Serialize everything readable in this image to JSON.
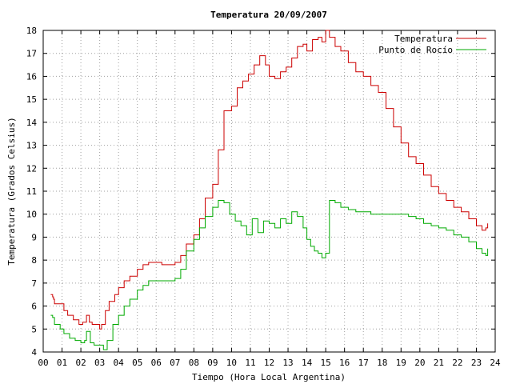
{
  "chart_data": {
    "type": "line",
    "title": "Temperatura 20/09/2007",
    "xlabel": "Tiempo (Hora Local Argentina)",
    "ylabel": "Temperatura (Grados Celsius)",
    "xlim": [
      0,
      24
    ],
    "ylim": [
      4,
      18
    ],
    "x_ticks": [
      "00",
      "01",
      "02",
      "03",
      "04",
      "05",
      "06",
      "07",
      "08",
      "09",
      "10",
      "11",
      "12",
      "13",
      "14",
      "15",
      "16",
      "17",
      "18",
      "19",
      "20",
      "21",
      "22",
      "23",
      "24"
    ],
    "y_ticks": [
      "4",
      "5",
      "6",
      "7",
      "8",
      "9",
      "10",
      "11",
      "12",
      "13",
      "14",
      "15",
      "16",
      "17",
      "18"
    ],
    "grid": true,
    "legend_position": "top-right",
    "series": [
      {
        "name": "Temperatura",
        "color": "#cc0000",
        "x": [
          0.4,
          0.5,
          0.55,
          0.6,
          0.9,
          1.1,
          1.3,
          1.6,
          1.9,
          2.1,
          2.3,
          2.45,
          2.6,
          3.0,
          3.1,
          3.3,
          3.5,
          3.8,
          4.0,
          4.3,
          4.6,
          5.0,
          5.3,
          5.6,
          6.0,
          6.3,
          6.6,
          7.0,
          7.3,
          7.6,
          8.0,
          8.3,
          8.6,
          9.0,
          9.3,
          9.6,
          10.0,
          10.3,
          10.6,
          10.9,
          11.2,
          11.5,
          11.8,
          12.0,
          12.3,
          12.6,
          12.9,
          13.2,
          13.5,
          13.8,
          14.0,
          14.3,
          14.6,
          14.8,
          15.0,
          15.2,
          15.5,
          15.8,
          16.2,
          16.6,
          17.0,
          17.4,
          17.8,
          18.2,
          18.6,
          19.0,
          19.4,
          19.8,
          20.2,
          20.6,
          21.0,
          21.4,
          21.8,
          22.2,
          22.6,
          23.0,
          23.3,
          23.5,
          23.6
        ],
        "y": [
          6.5,
          6.4,
          6.3,
          6.1,
          6.1,
          5.8,
          5.6,
          5.4,
          5.2,
          5.3,
          5.6,
          5.3,
          5.2,
          5.0,
          5.2,
          5.8,
          6.2,
          6.5,
          6.8,
          7.1,
          7.3,
          7.6,
          7.8,
          7.9,
          7.9,
          7.8,
          7.8,
          7.9,
          8.2,
          8.7,
          9.1,
          9.8,
          10.7,
          11.3,
          12.8,
          14.5,
          14.7,
          15.5,
          15.8,
          16.1,
          16.5,
          16.9,
          16.5,
          16.0,
          15.9,
          16.2,
          16.4,
          16.8,
          17.3,
          17.4,
          17.1,
          17.6,
          17.7,
          17.5,
          18.0,
          17.7,
          17.3,
          17.1,
          16.6,
          16.2,
          16.0,
          15.6,
          15.3,
          14.6,
          13.8,
          13.1,
          12.5,
          12.2,
          11.7,
          11.2,
          10.9,
          10.6,
          10.3,
          10.1,
          9.8,
          9.5,
          9.3,
          9.4,
          9.6
        ]
      },
      {
        "name": "Punto de Rocío",
        "color": "#00aa00",
        "x": [
          0.4,
          0.5,
          0.6,
          0.9,
          1.1,
          1.4,
          1.7,
          2.0,
          2.2,
          2.3,
          2.5,
          2.7,
          3.0,
          3.2,
          3.4,
          3.7,
          4.0,
          4.3,
          4.6,
          5.0,
          5.3,
          5.6,
          6.0,
          6.3,
          6.6,
          7.0,
          7.3,
          7.6,
          8.0,
          8.3,
          8.6,
          9.0,
          9.3,
          9.6,
          9.9,
          10.2,
          10.5,
          10.8,
          11.1,
          11.4,
          11.7,
          12.0,
          12.3,
          12.6,
          12.9,
          13.2,
          13.5,
          13.8,
          14.0,
          14.2,
          14.4,
          14.6,
          14.8,
          15.0,
          15.2,
          15.5,
          15.8,
          16.2,
          16.6,
          17.0,
          17.4,
          17.8,
          18.2,
          18.6,
          19.0,
          19.4,
          19.8,
          20.2,
          20.6,
          21.0,
          21.4,
          21.8,
          22.2,
          22.6,
          23.0,
          23.3,
          23.5,
          23.6
        ],
        "y": [
          5.6,
          5.5,
          5.2,
          5.0,
          4.8,
          4.6,
          4.5,
          4.4,
          4.5,
          4.9,
          4.4,
          4.3,
          4.3,
          4.1,
          4.5,
          5.2,
          5.6,
          6.0,
          6.3,
          6.7,
          6.9,
          7.1,
          7.1,
          7.1,
          7.1,
          7.2,
          7.6,
          8.4,
          8.9,
          9.4,
          9.9,
          10.3,
          10.6,
          10.5,
          10.0,
          9.7,
          9.5,
          9.1,
          9.8,
          9.2,
          9.7,
          9.6,
          9.4,
          9.8,
          9.6,
          10.1,
          9.9,
          9.4,
          8.9,
          8.6,
          8.4,
          8.3,
          8.1,
          8.3,
          10.6,
          10.5,
          10.3,
          10.2,
          10.1,
          10.1,
          10.0,
          10.0,
          10.0,
          10.0,
          10.0,
          9.9,
          9.8,
          9.6,
          9.5,
          9.4,
          9.3,
          9.1,
          9.0,
          8.8,
          8.5,
          8.3,
          8.2,
          8.5
        ]
      }
    ]
  }
}
